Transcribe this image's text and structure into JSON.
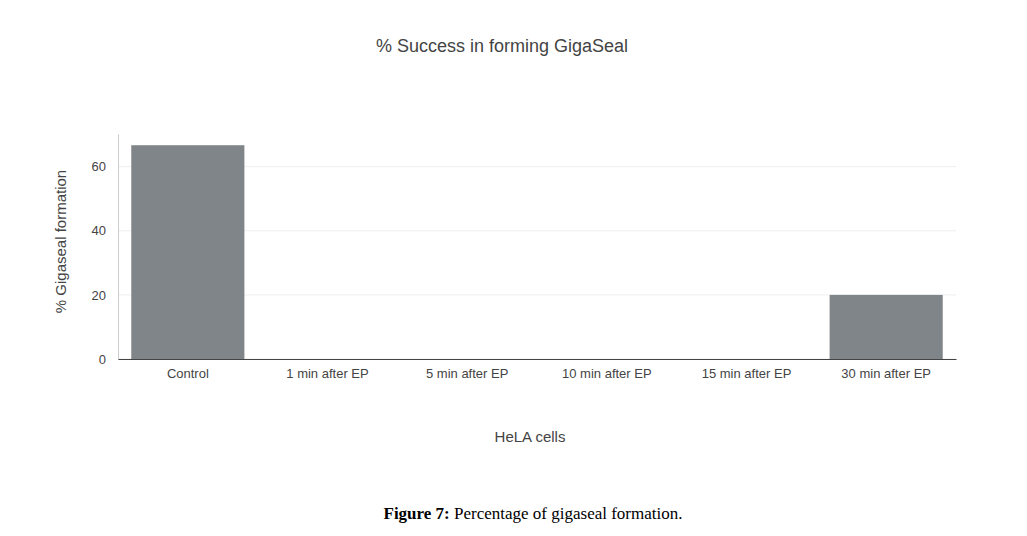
{
  "chart_data": {
    "type": "bar",
    "title": "% Success in forming GigaSeal",
    "x_label": "HeLA cells",
    "y_label": "% Gigaseal formation",
    "caption": "Figure 7: Percentage of gigaseal formation.",
    "categories": [
      "Control",
      "1 min after EP",
      "5 min after EP",
      "10 min after EP",
      "15 min after EP",
      "30 min after EP"
    ],
    "values": [
      66.7,
      0,
      0,
      0,
      0,
      20
    ],
    "color": "#7f8588",
    "ylim": [
      0,
      70.2
    ],
    "yticks": [
      0,
      20,
      40,
      60
    ],
    "grid": true
  }
}
